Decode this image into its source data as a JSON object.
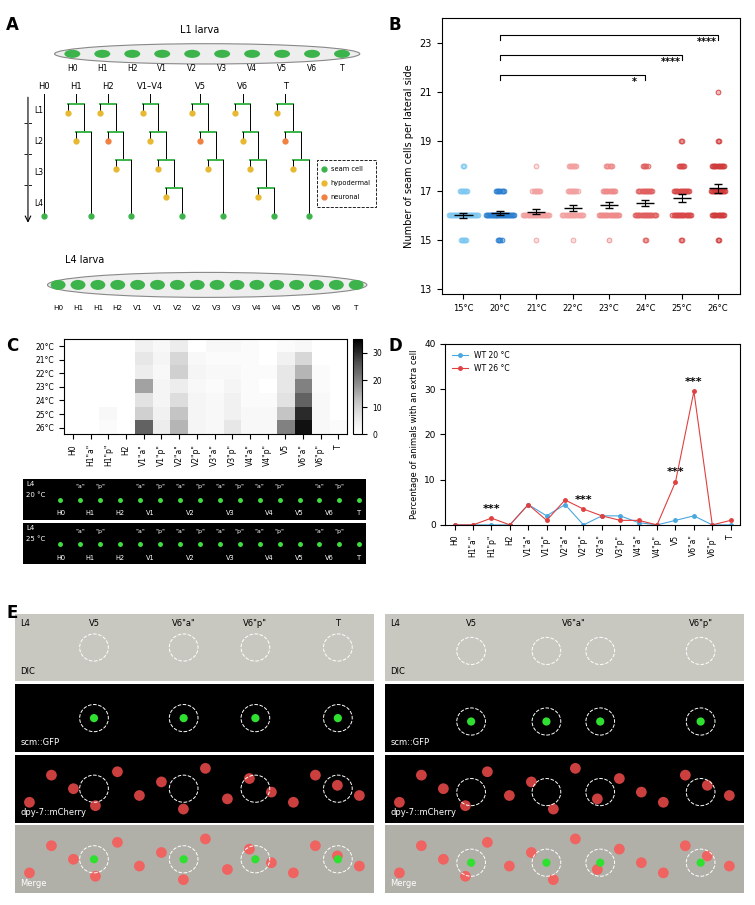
{
  "panel_labels": [
    "A",
    "B",
    "C",
    "D",
    "E"
  ],
  "diagram_A": {
    "top_title": "L1 larva",
    "bottom_title": "L4 larva",
    "l1_cells": [
      "H0",
      "H1",
      "H2",
      "V1",
      "V2",
      "V3",
      "V4",
      "V5",
      "V6",
      "T"
    ],
    "lineage_columns": [
      "H0",
      "H1",
      "H2",
      "V1–V4",
      "V5",
      "V6",
      "T"
    ],
    "stages": [
      "L1",
      "L2",
      "L3",
      "L4"
    ],
    "legend": [
      {
        "label": "seam cell",
        "color": "#3cb44b"
      },
      {
        "label": "hypodermal",
        "color": "#e8b830"
      },
      {
        "label": "neuronal",
        "color": "#f08040"
      }
    ],
    "l4_cells": [
      "H0",
      "H1",
      "H1",
      "H2",
      "V1",
      "V1",
      "V2",
      "V2",
      "V3",
      "V3",
      "V4",
      "V4",
      "V5",
      "V6",
      "V6",
      "T"
    ]
  },
  "chart_data": [
    {
      "type": "scatter",
      "categories": [
        "15°C",
        "20°C",
        "21°C",
        "22°C",
        "23°C",
        "24°C",
        "25°C",
        "26°C"
      ],
      "y_label": "Number of seam cells per lateral side",
      "ylim": [
        12.8,
        24
      ],
      "yticks": [
        13,
        15,
        17,
        19,
        21,
        23
      ],
      "colors": [
        "#7ec8f0",
        "#2b7fd0",
        "#f2a0a0",
        "#f2a0a0",
        "#ee8a8a",
        "#e06060",
        "#d84848",
        "#d03a3a"
      ],
      "marker": "o",
      "points": [
        {
          "values": [
            15,
            16,
            17,
            18
          ],
          "counts": [
            6,
            30,
            8,
            2
          ]
        },
        {
          "values": [
            15,
            16,
            17
          ],
          "counts": [
            4,
            30,
            8
          ]
        },
        {
          "values": [
            15,
            16,
            17,
            18
          ],
          "counts": [
            1,
            25,
            8,
            1
          ]
        },
        {
          "values": [
            15,
            16,
            17,
            18
          ],
          "counts": [
            1,
            20,
            10,
            8
          ]
        },
        {
          "values": [
            15,
            16,
            17,
            18
          ],
          "counts": [
            1,
            20,
            12,
            6
          ]
        },
        {
          "values": [
            15,
            16,
            17,
            18
          ],
          "counts": [
            2,
            20,
            14,
            5
          ]
        },
        {
          "values": [
            15,
            16,
            17,
            18,
            19
          ],
          "counts": [
            2,
            18,
            15,
            6,
            2
          ]
        },
        {
          "values": [
            15,
            16,
            17,
            18,
            19,
            21
          ],
          "counts": [
            2,
            12,
            14,
            12,
            2,
            1
          ]
        }
      ],
      "means": [
        16.0,
        16.1,
        16.15,
        16.3,
        16.4,
        16.5,
        16.7,
        17.1
      ],
      "errors": [
        0.1,
        0.08,
        0.1,
        0.12,
        0.12,
        0.12,
        0.15,
        0.18
      ],
      "significance": [
        {
          "from": "20°C",
          "to": "24°C",
          "label": "*"
        },
        {
          "from": "20°C",
          "to": "25°C",
          "label": "****"
        },
        {
          "from": "20°C",
          "to": "26°C",
          "label": "****"
        }
      ]
    },
    {
      "type": "heatmap",
      "rows": [
        "20°C",
        "21°C",
        "22°C",
        "23°C",
        "24°C",
        "25°C",
        "26°C"
      ],
      "columns": [
        "H0",
        "H1\"a\"",
        "H1\"p\"",
        "H2",
        "V1\"a\"",
        "V1\"p\"",
        "V2\"a\"",
        "V2\"p\"",
        "V3\"a\"",
        "V3\"p\"",
        "V4\"a\"",
        "V4\"p\"",
        "V5",
        "V6\"a\"",
        "V6\"p\"",
        "T"
      ],
      "cells": [
        [
          0,
          0,
          0,
          0,
          4,
          2,
          5,
          0,
          2,
          2,
          1,
          0,
          1,
          2,
          0,
          0
        ],
        [
          0,
          0,
          0,
          0,
          6,
          3,
          9,
          2,
          1,
          1,
          1,
          0,
          4,
          9,
          0,
          0
        ],
        [
          0,
          0,
          0,
          0,
          5,
          2,
          10,
          3,
          2,
          2,
          1,
          1,
          6,
          14,
          1,
          0
        ],
        [
          0,
          0,
          0,
          0,
          16,
          3,
          5,
          2,
          1,
          3,
          1,
          0,
          6,
          20,
          1,
          0
        ],
        [
          0,
          0,
          0,
          0,
          7,
          3,
          8,
          3,
          2,
          4,
          1,
          1,
          7,
          24,
          2,
          0
        ],
        [
          0,
          0,
          2,
          0,
          10,
          4,
          12,
          3,
          2,
          4,
          2,
          2,
          12,
          30,
          2,
          0
        ],
        [
          0,
          0,
          1,
          0,
          24,
          5,
          14,
          3,
          2,
          6,
          2,
          2,
          20,
          33,
          2,
          1
        ]
      ],
      "color_range": [
        0,
        35
      ],
      "color_ticks": [
        0,
        10,
        20,
        30
      ]
    },
    {
      "type": "line",
      "categories": [
        "H0",
        "H1\"a\"",
        "H1\"p\"",
        "H2",
        "V1\"a\"",
        "V1\"p\"",
        "V2\"a\"",
        "V2\"p\"",
        "V3\"a\"",
        "V3\"p\"",
        "V4\"a\"",
        "V4\"p\"",
        "V5",
        "V6\"a\"",
        "V6\"p\"",
        "T"
      ],
      "y_label": "Percentage of animals with an extra cell",
      "ylim": [
        0,
        40
      ],
      "yticks": [
        0,
        10,
        20,
        30,
        40
      ],
      "legend": "upper left",
      "marker": "o",
      "series": [
        {
          "name": "WT 20 °C",
          "color": "#4aa8e0",
          "values": [
            0,
            0,
            0,
            0,
            4.5,
            2,
            4.5,
            0,
            2,
            2,
            0.5,
            0,
            1,
            2,
            0,
            0
          ]
        },
        {
          "name": "WT 26 °C",
          "color": "#e04040",
          "values": [
            0,
            0,
            1.5,
            0,
            4.5,
            1,
            5.5,
            3.5,
            2,
            1,
            1,
            0,
            9.5,
            29.5,
            0,
            1
          ]
        }
      ],
      "annotations": [
        {
          "category": "H1\"p\"",
          "label": "***"
        },
        {
          "category": "V2\"p\"",
          "label": "***"
        },
        {
          "category": "V5",
          "label": "***"
        },
        {
          "category": "V6\"a\"",
          "label": "***"
        }
      ]
    }
  ],
  "images_C": {
    "strips": [
      {
        "stage": "L4",
        "temperature": "20 °C"
      },
      {
        "stage": "L4",
        "temperature": "25 °C"
      }
    ],
    "cells": [
      "H0",
      "H1",
      "H2",
      "V1",
      "V2",
      "V3",
      "V4",
      "V5",
      "V6",
      "T"
    ],
    "split_cells": [
      "H1",
      "V1",
      "V2",
      "V3",
      "V4",
      "V6"
    ],
    "sub_labels": [
      "\"a\"",
      "\"p\""
    ]
  },
  "panel_E": {
    "columns": [
      {
        "stage": "L4",
        "cell_labels": [
          "V5",
          "V6\"a\"",
          "V6\"p\"",
          "T"
        ]
      },
      {
        "stage": "L4",
        "cell_labels": [
          "V5",
          "V6\"a\"",
          "V6\"p\""
        ]
      }
    ],
    "channels": [
      "DIC",
      "scm::GFP",
      "dpy-7::mCherry",
      "Merge"
    ]
  }
}
